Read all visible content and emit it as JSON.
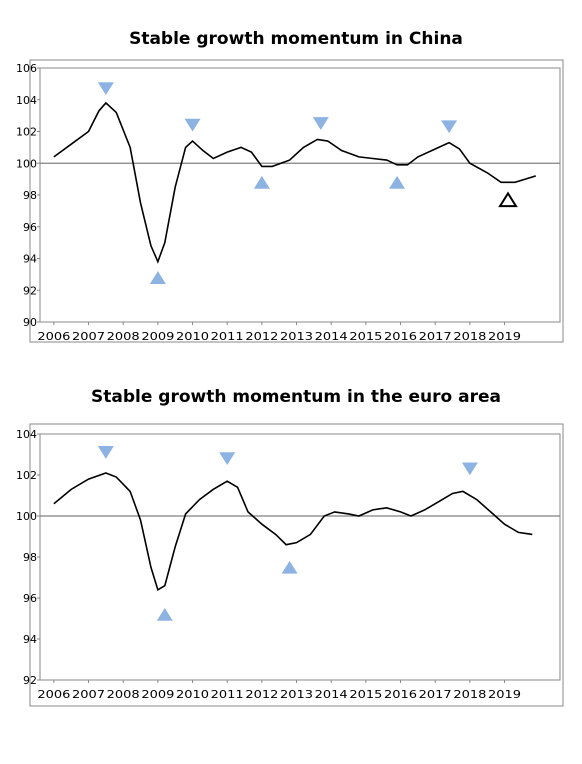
{
  "chart_data": [
    {
      "type": "line",
      "title": "Stable growth momentum in China",
      "x": [
        2006.0,
        2006.5,
        2007.0,
        2007.3,
        2007.5,
        2007.8,
        2008.2,
        2008.5,
        2008.8,
        2009.0,
        2009.2,
        2009.5,
        2009.8,
        2010.0,
        2010.3,
        2010.6,
        2011.0,
        2011.4,
        2011.7,
        2012.0,
        2012.3,
        2012.8,
        2013.2,
        2013.6,
        2013.9,
        2014.3,
        2014.8,
        2015.2,
        2015.6,
        2015.9,
        2016.2,
        2016.5,
        2017.0,
        2017.4,
        2017.7,
        2018.0,
        2018.5,
        2018.9,
        2019.3,
        2019.6,
        2019.9
      ],
      "series": [
        {
          "color": "#000000",
          "values": [
            100.4,
            101.2,
            102.0,
            103.3,
            103.8,
            103.2,
            101.0,
            97.5,
            94.8,
            93.8,
            95.0,
            98.5,
            101.0,
            101.4,
            100.8,
            100.3,
            100.7,
            101.0,
            100.7,
            99.8,
            99.8,
            100.2,
            101.0,
            101.5,
            101.4,
            100.8,
            100.4,
            100.3,
            100.2,
            99.9,
            99.9,
            100.4,
            100.9,
            101.3,
            100.9,
            100.0,
            99.4,
            98.8,
            98.8,
            99.0,
            99.2
          ]
        }
      ],
      "xlim": [
        2005.6,
        2020.6
      ],
      "xticks": [
        2006,
        2007,
        2008,
        2009,
        2010,
        2011,
        2012,
        2013,
        2014,
        2015,
        2016,
        2017,
        2018,
        2019
      ],
      "ylim": [
        90,
        106
      ],
      "yticks": [
        90,
        92,
        94,
        96,
        98,
        100,
        102,
        104,
        106
      ],
      "reference_line": 100,
      "marker_color": "#8db3e2",
      "turning_points": [
        {
          "x": 2007.5,
          "y": 104.7,
          "direction": "down"
        },
        {
          "x": 2009.0,
          "y": 92.8,
          "direction": "up"
        },
        {
          "x": 2010.0,
          "y": 102.4,
          "direction": "down"
        },
        {
          "x": 2012.0,
          "y": 98.8,
          "direction": "up"
        },
        {
          "x": 2013.7,
          "y": 102.5,
          "direction": "down"
        },
        {
          "x": 2015.9,
          "y": 98.8,
          "direction": "up"
        },
        {
          "x": 2017.4,
          "y": 102.3,
          "direction": "down"
        },
        {
          "x": 2019.1,
          "y": 97.7,
          "direction": "up",
          "style": "hollow"
        }
      ]
    },
    {
      "type": "line",
      "title": "Stable growth momentum in the euro area",
      "x": [
        2006.0,
        2006.5,
        2007.0,
        2007.5,
        2007.8,
        2008.2,
        2008.5,
        2008.8,
        2009.0,
        2009.2,
        2009.5,
        2009.8,
        2010.2,
        2010.6,
        2011.0,
        2011.3,
        2011.6,
        2012.0,
        2012.4,
        2012.7,
        2013.0,
        2013.4,
        2013.8,
        2014.1,
        2014.5,
        2014.8,
        2015.2,
        2015.6,
        2016.0,
        2016.3,
        2016.7,
        2017.1,
        2017.5,
        2017.8,
        2018.2,
        2018.6,
        2019.0,
        2019.4,
        2019.8
      ],
      "series": [
        {
          "color": "#000000",
          "values": [
            100.6,
            101.3,
            101.8,
            102.1,
            101.9,
            101.2,
            99.8,
            97.5,
            96.4,
            96.6,
            98.5,
            100.1,
            100.8,
            101.3,
            101.7,
            101.4,
            100.2,
            99.6,
            99.1,
            98.6,
            98.7,
            99.1,
            100.0,
            100.2,
            100.1,
            100.0,
            100.3,
            100.4,
            100.2,
            100.0,
            100.3,
            100.7,
            101.1,
            101.2,
            100.8,
            100.2,
            99.6,
            99.2,
            99.1
          ]
        }
      ],
      "xlim": [
        2005.6,
        2020.6
      ],
      "xticks": [
        2006,
        2007,
        2008,
        2009,
        2010,
        2011,
        2012,
        2013,
        2014,
        2015,
        2016,
        2017,
        2018,
        2019
      ],
      "ylim": [
        92,
        104
      ],
      "yticks": [
        92,
        94,
        96,
        98,
        100,
        102,
        104
      ],
      "reference_line": 100,
      "marker_color": "#8db3e2",
      "turning_points": [
        {
          "x": 2007.5,
          "y": 103.1,
          "direction": "down"
        },
        {
          "x": 2009.2,
          "y": 95.2,
          "direction": "up"
        },
        {
          "x": 2011.0,
          "y": 102.8,
          "direction": "down"
        },
        {
          "x": 2012.8,
          "y": 97.5,
          "direction": "up"
        },
        {
          "x": 2018.0,
          "y": 102.3,
          "direction": "down"
        }
      ]
    }
  ]
}
